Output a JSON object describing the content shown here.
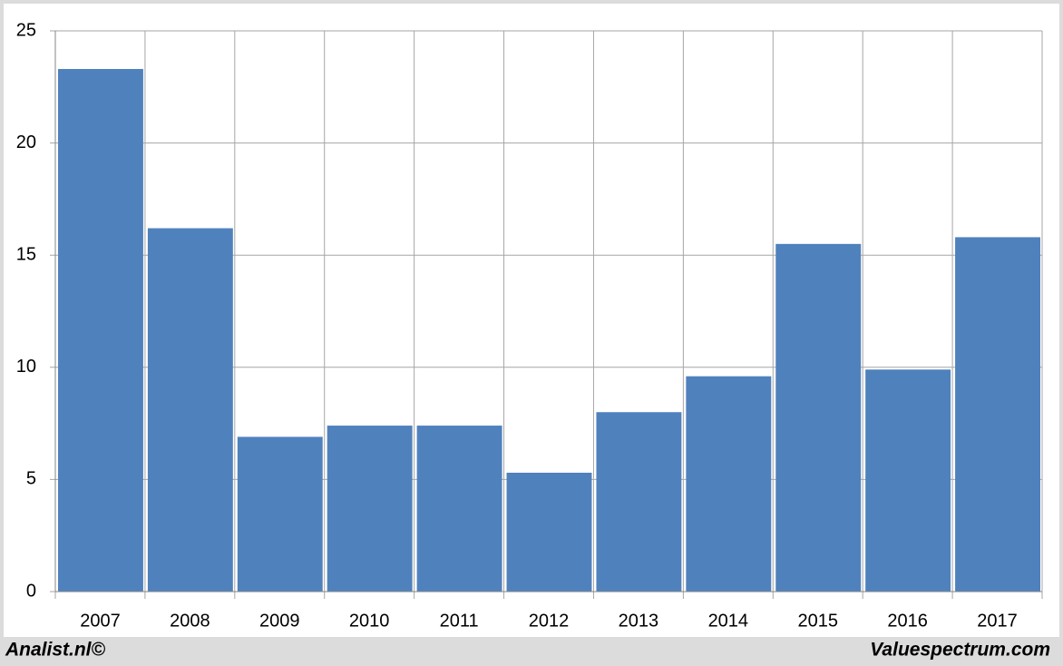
{
  "chart_data": {
    "type": "bar",
    "categories": [
      "2007",
      "2008",
      "2009",
      "2010",
      "2011",
      "2012",
      "2013",
      "2014",
      "2015",
      "2016",
      "2017"
    ],
    "values": [
      23.3,
      16.2,
      6.9,
      7.4,
      7.4,
      5.3,
      8.0,
      9.6,
      15.5,
      9.9,
      15.8
    ],
    "color": "#4f81bd",
    "ylim": [
      0,
      25
    ],
    "yticks": [
      0,
      5,
      10,
      15,
      20,
      25
    ],
    "grid": true,
    "footer_left": "Analist.nl©",
    "footer_right": "Valuespectrum.com"
  }
}
